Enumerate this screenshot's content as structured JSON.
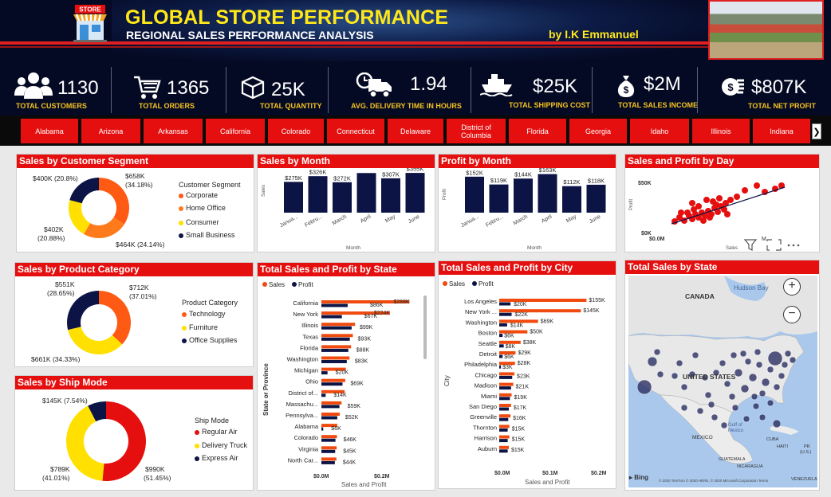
{
  "header": {
    "title": "GLOBAL STORE PERFORMANCE",
    "subtitle": "REGIONAL SALES PERFORMANCE ANALYSIS",
    "author": "by I.K Emmanuel",
    "store_sign": "STORE"
  },
  "kpis": [
    {
      "value": "1130",
      "label": "TOTAL CUSTOMERS",
      "icon": "users-icon"
    },
    {
      "value": "1365",
      "label": "TOTAL ORDERS",
      "icon": "cart-icon"
    },
    {
      "value": "25K",
      "label": "TOTAL QUANTITY",
      "icon": "box-icon"
    },
    {
      "value": "1.94",
      "label": "AVG. DELIVERY TIME IN HOURS",
      "icon": "truck-icon"
    },
    {
      "value": "$25K",
      "label": "TOTAL SHIPPING COST",
      "icon": "ship-icon"
    },
    {
      "value": "$2M",
      "label": "TOTAL SALES INCOME",
      "icon": "money-bag-icon"
    },
    {
      "value": "$807K",
      "label": "TOTAL NET PROFIT",
      "icon": "coins-icon"
    }
  ],
  "states_slicer": [
    "Alabama",
    "Arizona",
    "Arkansas",
    "California",
    "Colorado",
    "Connecticut",
    "Delaware",
    "District of Columbia",
    "Florida",
    "Georgia",
    "Idaho",
    "Illinois",
    "Indiana"
  ],
  "colors": {
    "red": "#e50f0f",
    "orange": "#ff5a14",
    "yellow": "#ffe000",
    "navy": "#0c1446",
    "bar_orange": "#f04a0e"
  },
  "customer_segment": {
    "title": "Sales by Customer Segment",
    "legend_title": "Customer Segment",
    "labels": {
      "corporate": "$658K\n(34.18%)",
      "home": "$464K (24.14%)",
      "consumer": "$402K\n(20.88%)",
      "small": "$400K (20.8%)"
    },
    "label_lines": {
      "corporate_a": "$658K",
      "corporate_b": "(34.18%)",
      "home": "$464K (24.14%)",
      "consumer_a": "$402K",
      "consumer_b": "(20.88%)",
      "small": "$400K (20.8%)"
    }
  },
  "product_category": {
    "title": "Sales by Product Category",
    "legend_title": "Product Category",
    "label_lines": {
      "tech_a": "$712K",
      "tech_b": "(37.01%)",
      "furn": "$661K (34.33%)",
      "office_a": "$551K",
      "office_b": "(28.65%)"
    }
  },
  "ship_mode": {
    "title": "Sales by Ship Mode",
    "legend_title": "Ship Mode",
    "label_lines": {
      "regular_a": "$990K",
      "regular_b": "(51.45%)",
      "truck_a": "$789K",
      "truck_b": "(41.01%)",
      "express": "$145K (7.54%)"
    }
  },
  "sales_by_month": {
    "title": "Sales by Month",
    "ylabel": "Sales",
    "xlabel": "Month"
  },
  "profit_by_month": {
    "title": "Profit by Month",
    "ylabel": "Profit",
    "xlabel": "Month"
  },
  "sales_profit_day": {
    "title": "Sales and Profit by Day",
    "ylabel": "Profit",
    "xlabel": "Sales",
    "y_top": "$50K",
    "y_bottom": "$0K",
    "x_left": "$0.0M",
    "x_right": "M"
  },
  "state_bars": {
    "title": "Total Sales and Profit by State",
    "ylabel": "State or Province",
    "xlabel": "Sales and Profit",
    "legend_sales": "Sales",
    "legend_profit": "Profit",
    "ticks": [
      "$0.0M",
      "$0.2M"
    ]
  },
  "city_bars": {
    "title": "Total Sales and Profit by City",
    "ylabel": "City",
    "xlabel": "Sales and Profit",
    "legend_sales": "Sales",
    "legend_profit": "Profit",
    "ticks": [
      "$0.0M",
      "$0.1M",
      "$0.2M"
    ]
  },
  "map": {
    "title": "Total Sales by State",
    "labels": {
      "hudson": "Hudson Bay",
      "canada": "CANADA",
      "us": "UNITED STATES",
      "mexico": "MEXICO",
      "gulf": "Gulf of\nMexico",
      "gulf_a": "Gulf of",
      "gulf_b": "Mexico",
      "cuba": "CUBA",
      "haiti": "HAITI",
      "pr_a": "PR",
      "pr_b": "(U.S.)",
      "guatemala": "GUATEMALA",
      "nicaragua": "NICARAGUA",
      "venezuela": "VENEZUELA",
      "bing": "Bing",
      "copyright": "© 2020 TomTom © 2020 HERE, © 2020 Microsoft Corporation Terms"
    }
  },
  "chart_data": [
    {
      "type": "pie",
      "title": "Sales by Customer Segment",
      "legend": [
        "Corporate",
        "Home Office",
        "Consumer",
        "Small Business"
      ],
      "values": [
        658,
        464,
        402,
        400
      ],
      "percents": [
        34.18,
        24.14,
        20.88,
        20.8
      ]
    },
    {
      "type": "bar",
      "title": "Sales by Month",
      "categories": [
        "January",
        "February",
        "March",
        "April",
        "May",
        "June"
      ],
      "category_labels": [
        "Janua...",
        "Febru...",
        "March",
        "April",
        "May",
        "June"
      ],
      "values": [
        275,
        326,
        272,
        354,
        307,
        355
      ],
      "value_labels": [
        "$275K",
        "$326K",
        "$272K",
        "",
        "$307K",
        "$355K"
      ],
      "xlabel": "Month",
      "ylabel": "Sales"
    },
    {
      "type": "bar",
      "title": "Profit by Month",
      "categories": [
        "January",
        "February",
        "March",
        "April",
        "May",
        "June"
      ],
      "category_labels": [
        "Janua...",
        "Febru...",
        "March",
        "April",
        "May",
        "June"
      ],
      "values": [
        152,
        119,
        144,
        163,
        112,
        118
      ],
      "value_labels": [
        "$152K",
        "$119K",
        "$144K",
        "$163K",
        "$112K",
        "$118K"
      ],
      "xlabel": "Month",
      "ylabel": "Profit"
    },
    {
      "type": "scatter",
      "title": "Sales and Profit by Day",
      "xlabel": "Sales",
      "ylabel": "Profit",
      "ylim": [
        0,
        50
      ]
    },
    {
      "type": "pie",
      "title": "Sales by Product Category",
      "legend": [
        "Technology",
        "Furniture",
        "Office Supplies"
      ],
      "values": [
        712,
        661,
        551
      ],
      "percents": [
        37.01,
        34.33,
        28.65
      ]
    },
    {
      "type": "pie",
      "title": "Sales by Ship Mode",
      "legend": [
        "Regular Air",
        "Delivery Truck",
        "Express Air"
      ],
      "values": [
        990,
        789,
        145
      ],
      "percents": [
        51.45,
        41.01,
        7.54
      ]
    },
    {
      "type": "bar",
      "title": "Total Sales and Profit by State",
      "categories": [
        "California",
        "New York",
        "Illinois",
        "Texas",
        "Florida",
        "Washington",
        "Michigan",
        "Ohio",
        "District of...",
        "Massachu...",
        "Pennsylva...",
        "Alabama",
        "Colorado",
        "Virginia",
        "North Car..."
      ],
      "series": [
        {
          "name": "Sales",
          "values": [
            288,
            224,
            110,
            103,
            97,
            92,
            80,
            78,
            76,
            66,
            60,
            52,
            51,
            50,
            49
          ]
        },
        {
          "name": "Profit",
          "values": [
            86,
            67,
            99,
            93,
            88,
            83,
            20,
            69,
            14,
            59,
            52,
            6,
            46,
            45,
            44
          ]
        }
      ],
      "profit_labels": [
        "$86K",
        "$67K",
        "$99K",
        "$93K",
        "$88K",
        "$83K",
        "$20K",
        "$69K",
        "$14K",
        "$59K",
        "$52K",
        "$6K",
        "$46K",
        "$45K",
        "$44K"
      ],
      "sales_labels": [
        "$288K",
        "$224K"
      ]
    },
    {
      "type": "bar",
      "title": "Total Sales and Profit by City",
      "categories": [
        "Los Angeles",
        "New York ...",
        "Washington",
        "Boston",
        "Seattle",
        "Detroit",
        "Philadelphia",
        "Chicago",
        "Madison",
        "Miami",
        "San Diego",
        "Greenville",
        "Thornton",
        "Harrison",
        "Auburn"
      ],
      "series": [
        {
          "name": "Sales",
          "values": [
            155,
            145,
            69,
            50,
            38,
            29,
            28,
            27,
            25,
            22,
            21,
            20,
            18,
            18,
            17
          ]
        },
        {
          "name": "Profit",
          "values": [
            20,
            22,
            14,
            6,
            8,
            6,
            3,
            23,
            21,
            19,
            17,
            16,
            15,
            15,
            15
          ]
        }
      ],
      "labels": [
        [
          "$155K",
          "$20K"
        ],
        [
          "$145K",
          "$22K"
        ],
        [
          "$69K",
          "$14K"
        ],
        [
          "$50K",
          "$6K"
        ],
        [
          "$38K",
          "$8K"
        ],
        [
          "$29K",
          "$6K"
        ],
        [
          "$28K",
          "$3K"
        ],
        [
          "$23K"
        ],
        [
          "$21K"
        ],
        [
          "$19K"
        ],
        [
          "$17K"
        ],
        [
          "$16K"
        ],
        [
          "$15K"
        ],
        [
          "$15K"
        ],
        [
          "$15K"
        ]
      ]
    }
  ]
}
